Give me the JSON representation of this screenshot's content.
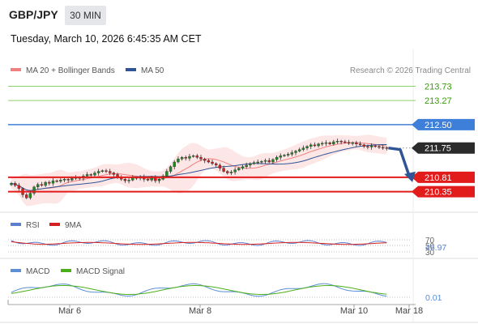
{
  "header": {
    "symbol": "GBP/JPY",
    "timeframe": "30 MIN",
    "datetime": "Tuesday, March 10, 2026 6:45:35 AM CET"
  },
  "colors": {
    "ma20": "#f08080",
    "band_fill": "#fde0e0",
    "ma50": "#2f5597",
    "green": "#3a9a0a",
    "blue": "#3d7fd9",
    "red": "#e21b1b",
    "dark": "#2b2b2b",
    "up": "#1f8a1f",
    "down": "#d62020",
    "rsi": "#5b7fcf",
    "rsi_ma": "#d62020",
    "macd": "#5b8fd6",
    "signal": "#4caf1a"
  },
  "legend_main": [
    {
      "label": "MA 20 + Bollinger Bands",
      "color": "#f08080"
    },
    {
      "label": "MA 50",
      "color": "#2f5597"
    }
  ],
  "copyright": "Research © 2026 Trading Central",
  "legend_rsi": [
    {
      "label": "RSI",
      "color": "#5b7fcf"
    },
    {
      "label": "9MA",
      "color": "#d62020"
    }
  ],
  "legend_macd": [
    {
      "label": "MACD",
      "color": "#5b8fd6"
    },
    {
      "label": "MACD Signal",
      "color": "#4caf1a"
    }
  ],
  "chart_data": {
    "type": "candlestick",
    "price_range": [
      209.95,
      213.95
    ],
    "levels": [
      {
        "label": "213.73",
        "value": 213.73,
        "style": "thin-green"
      },
      {
        "label": "213.27",
        "value": 213.27,
        "style": "thin-green"
      },
      {
        "label": "212.50",
        "value": 212.5,
        "style": "blue"
      },
      {
        "label": "211.75",
        "value": 211.75,
        "style": "current-dotted"
      },
      {
        "label": "210.81",
        "value": 210.81,
        "style": "red"
      },
      {
        "label": "210.35",
        "value": 210.35,
        "style": "red"
      }
    ],
    "forecast": {
      "from": 211.75,
      "to": 210.81
    },
    "x_labels": [
      "Mar 6",
      "Mar 8",
      "Mar 10",
      "Mar 18"
    ],
    "closes": [
      210.62,
      210.55,
      210.45,
      210.25,
      210.15,
      210.3,
      210.5,
      210.58,
      210.55,
      210.65,
      210.62,
      210.7,
      210.68,
      210.72,
      210.75,
      210.72,
      210.78,
      210.8,
      210.78,
      210.85,
      210.9,
      210.88,
      210.95,
      211.0,
      211.02,
      211.0,
      210.95,
      210.9,
      210.8,
      210.75,
      210.7,
      210.72,
      210.8,
      210.78,
      210.82,
      210.75,
      210.72,
      210.8,
      210.7,
      210.75,
      210.85,
      211.0,
      211.15,
      211.3,
      211.4,
      211.45,
      211.42,
      211.48,
      211.5,
      211.45,
      211.4,
      211.35,
      211.3,
      211.25,
      211.2,
      211.1,
      211.0,
      210.95,
      210.98,
      211.05,
      211.1,
      211.15,
      211.2,
      211.25,
      211.28,
      211.3,
      211.32,
      211.35,
      211.3,
      211.38,
      211.45,
      211.5,
      211.52,
      211.55,
      211.6,
      211.65,
      211.7,
      211.75,
      211.8,
      211.85,
      211.82,
      211.88,
      211.9,
      211.92,
      211.88,
      211.95,
      211.97,
      211.95,
      211.93,
      211.9,
      211.92,
      211.88,
      211.85,
      211.8,
      211.78,
      211.82,
      211.8,
      211.77,
      211.76,
      211.75
    ],
    "rsi": {
      "levels": [
        "70",
        "50",
        "30"
      ],
      "current": "46.97"
    },
    "macd": {
      "current": "0.01"
    }
  }
}
